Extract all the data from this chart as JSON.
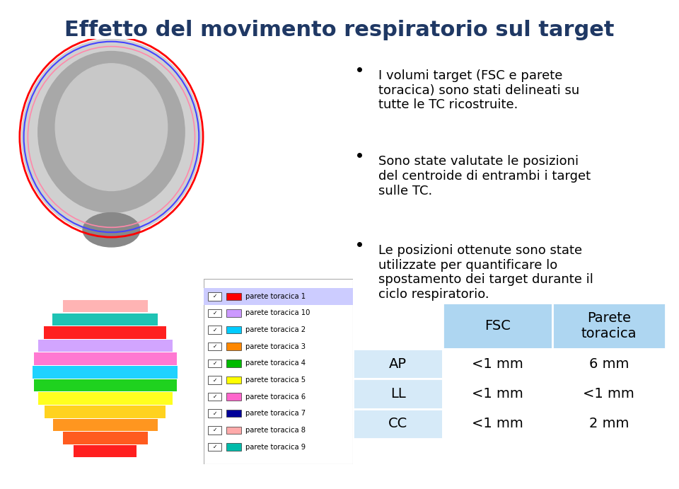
{
  "title": "Effetto del movimento respiratorio sul target",
  "title_color": "#1F3864",
  "title_fontsize": 22,
  "bg_color": "#FFFFFF",
  "bullet_points": [
    "I volumi target (FSC e parete\ntoracica) sono stati delineati su\ntutte le TC ricostruite.",
    "Sono state valutate le posizioni\ndel centroide di entrambi i target\nsulle TC.",
    "Le posizioni ottenute sono state\nutilizzate per quantificare lo\nspostamento dei target durante il\nciclo respiratorio."
  ],
  "bullet_color": "#000000",
  "bullet_fontsize": 13,
  "table_header_bg": "#AED6F1",
  "table_row_bg": "#D6EAF8",
  "table_border_color": "#FFFFFF",
  "table_col1_header": "",
  "table_col2_header": "FSC",
  "table_col3_header": "Parete\ntoracica",
  "table_rows": [
    [
      "AP",
      "<1 mm",
      "6 mm"
    ],
    [
      "LL",
      "<1 mm",
      "<1 mm"
    ],
    [
      "CC",
      "<1 mm",
      "2 mm"
    ]
  ],
  "legend_items": [
    {
      "label": "parete toracica 1",
      "color": "#FF0000"
    },
    {
      "label": "parete toracica 10",
      "color": "#CC99FF"
    },
    {
      "label": "parete toracica 2",
      "color": "#00CCFF"
    },
    {
      "label": "parete toracica 3",
      "color": "#FF8800"
    },
    {
      "label": "parete toracica 4",
      "color": "#00BB00"
    },
    {
      "label": "parete toracica 5",
      "color": "#FFFF00"
    },
    {
      "label": "parete toracica 6",
      "color": "#FF66CC"
    },
    {
      "label": "parete toracica 7",
      "color": "#000099"
    },
    {
      "label": "parete toracica 8",
      "color": "#FFAAAA"
    },
    {
      "label": "parete toracica 9",
      "color": "#00BBAA"
    }
  ]
}
